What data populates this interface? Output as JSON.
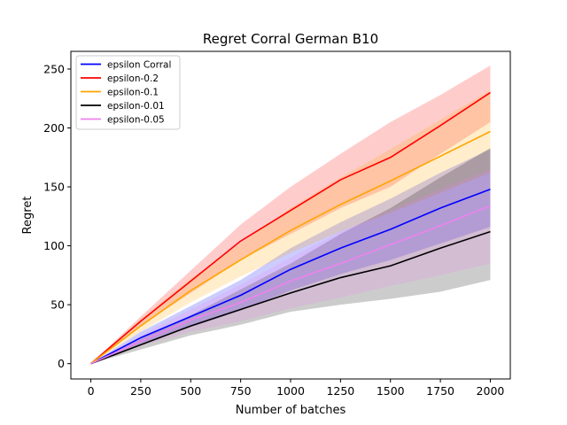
{
  "chart_data": {
    "type": "line",
    "title": "Regret Corral German B10",
    "xlabel": "Number of batches",
    "ylabel": "Regret",
    "xlim": [
      -100,
      2100
    ],
    "ylim": [
      -13,
      265
    ],
    "xticks": [
      0,
      250,
      500,
      750,
      1000,
      1250,
      1500,
      1750,
      2000
    ],
    "yticks": [
      0,
      50,
      100,
      150,
      200,
      250
    ],
    "grid": false,
    "legend_position": "top-left",
    "x": [
      0,
      250,
      500,
      750,
      1000,
      1250,
      1500,
      1750,
      2000
    ],
    "series": [
      {
        "name": "epsilon Corral",
        "color": "#0000ff",
        "band_alpha": 0.2,
        "values": [
          0,
          22,
          40,
          58,
          80,
          98,
          114,
          132,
          148
        ],
        "lower": [
          0,
          17,
          31,
          45,
          62,
          76,
          88,
          102,
          116
        ],
        "upper": [
          0,
          27,
          49,
          71,
          98,
          120,
          140,
          162,
          182
        ]
      },
      {
        "name": "epsilon-0.2",
        "color": "#ff0000",
        "band_alpha": 0.2,
        "values": [
          0,
          36,
          70,
          104,
          130,
          156,
          175,
          202,
          230
        ],
        "lower": [
          0,
          32,
          60,
          88,
          110,
          132,
          150,
          178,
          205
        ],
        "upper": [
          0,
          40,
          79,
          118,
          150,
          178,
          205,
          228,
          253
        ]
      },
      {
        "name": "epsilon-0.1",
        "color": "#ffa500",
        "band_alpha": 0.2,
        "values": [
          0,
          32,
          62,
          88,
          113,
          135,
          155,
          176,
          197
        ],
        "lower": [
          0,
          27,
          52,
          74,
          94,
          112,
          128,
          145,
          162
        ],
        "upper": [
          0,
          38,
          72,
          102,
          132,
          158,
          182,
          207,
          232
        ]
      },
      {
        "name": "epsilon-0.01",
        "color": "#000000",
        "band_alpha": 0.2,
        "values": [
          0,
          16,
          32,
          46,
          60,
          73,
          83,
          98,
          112
        ],
        "lower": [
          0,
          12,
          24,
          33,
          44,
          50,
          55,
          61,
          71
        ],
        "upper": [
          0,
          21,
          41,
          63,
          85,
          110,
          132,
          158,
          183
        ]
      },
      {
        "name": "epsilon-0.05",
        "color": "#ee82ee",
        "band_alpha": 0.2,
        "values": [
          0,
          19,
          37,
          52,
          70,
          85,
          101,
          117,
          134
        ],
        "lower": [
          0,
          15,
          27,
          36,
          47,
          56,
          66,
          75,
          85
        ],
        "upper": [
          0,
          24,
          46,
          67,
          90,
          112,
          130,
          148,
          165
        ]
      }
    ]
  }
}
